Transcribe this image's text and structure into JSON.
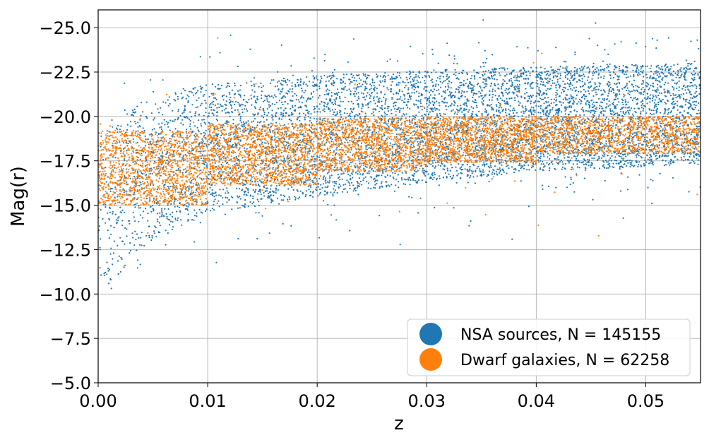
{
  "chart_data": {
    "type": "scatter",
    "xlabel": "z",
    "ylabel": "Mag(r)",
    "xlim": [
      0.0,
      0.055
    ],
    "ylim": [
      -5.0,
      -26.0
    ],
    "y_inverted": true,
    "grid": true,
    "x_ticks": [
      0.0,
      0.01,
      0.02,
      0.03,
      0.04,
      0.05
    ],
    "x_tick_labels": [
      "0.00",
      "0.01",
      "0.02",
      "0.03",
      "0.04",
      "0.05"
    ],
    "y_ticks": [
      -5.0,
      -7.5,
      -10.0,
      -12.5,
      -15.0,
      -17.5,
      -20.0,
      -22.5,
      -25.0
    ],
    "y_tick_labels": [
      "−5.0",
      "−7.5",
      "−10.0",
      "−12.5",
      "−15.0",
      "−17.5",
      "−20.0",
      "−22.5",
      "−25.0"
    ],
    "legend_position": "lower-right",
    "series": [
      {
        "name": "NSA sources, N = 145155",
        "color": "#1f77b4",
        "count": 145155,
        "envelope": [
          {
            "z": 0.0,
            "faint": -10.0,
            "bright": -19.5
          },
          {
            "z": 0.005,
            "faint": -13.0,
            "bright": -21.0
          },
          {
            "z": 0.01,
            "faint": -14.5,
            "bright": -21.8
          },
          {
            "z": 0.02,
            "faint": -15.5,
            "bright": -22.3
          },
          {
            "z": 0.03,
            "faint": -16.3,
            "bright": -22.6
          },
          {
            "z": 0.04,
            "faint": -16.9,
            "bright": -22.8
          },
          {
            "z": 0.055,
            "faint": -17.3,
            "bright": -23.0
          }
        ]
      },
      {
        "name": "Dwarf galaxies, N = 62258",
        "color": "#ff7f0e",
        "count": 62258,
        "bins": [
          {
            "z_min": 0.0,
            "z_max": 0.01,
            "mag_faint": -15.0,
            "mag_bright": -19.2
          },
          {
            "z_min": 0.01,
            "z_max": 0.02,
            "mag_faint": -16.1,
            "mag_bright": -19.6
          },
          {
            "z_min": 0.02,
            "z_max": 0.03,
            "mag_faint": -16.9,
            "mag_bright": -19.9
          },
          {
            "z_min": 0.03,
            "z_max": 0.04,
            "mag_faint": -17.4,
            "mag_bright": -20.0
          },
          {
            "z_min": 0.04,
            "z_max": 0.055,
            "mag_faint": -17.9,
            "mag_bright": -20.0
          }
        ]
      }
    ]
  }
}
